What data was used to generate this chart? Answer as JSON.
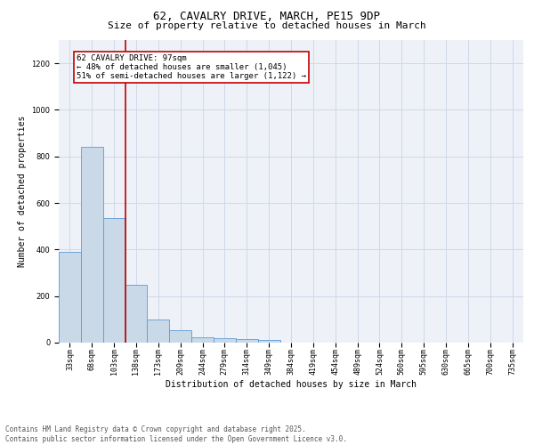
{
  "title_line1": "62, CAVALRY DRIVE, MARCH, PE15 9DP",
  "title_line2": "Size of property relative to detached houses in March",
  "xlabel": "Distribution of detached houses by size in March",
  "ylabel": "Number of detached properties",
  "categories": [
    "33sqm",
    "68sqm",
    "103sqm",
    "138sqm",
    "173sqm",
    "209sqm",
    "244sqm",
    "279sqm",
    "314sqm",
    "349sqm",
    "384sqm",
    "419sqm",
    "454sqm",
    "489sqm",
    "524sqm",
    "560sqm",
    "595sqm",
    "630sqm",
    "665sqm",
    "700sqm",
    "735sqm"
  ],
  "values": [
    390,
    840,
    535,
    248,
    100,
    52,
    22,
    20,
    14,
    10,
    0,
    0,
    0,
    0,
    0,
    0,
    0,
    0,
    0,
    0,
    0
  ],
  "bar_color": "#c9d9e8",
  "bar_edge_color": "#5b9bd5",
  "vline_x": 2.5,
  "vline_color": "#c00000",
  "annotation_box_text": "62 CAVALRY DRIVE: 97sqm\n← 48% of detached houses are smaller (1,045)\n51% of semi-detached houses are larger (1,122) →",
  "ylim": [
    0,
    1300
  ],
  "yticks": [
    0,
    200,
    400,
    600,
    800,
    1000,
    1200
  ],
  "grid_color": "#d0d8e8",
  "bg_color": "#eef2f8",
  "footer_line1": "Contains HM Land Registry data © Crown copyright and database right 2025.",
  "footer_line2": "Contains public sector information licensed under the Open Government Licence v3.0.",
  "title_fontsize": 9,
  "subtitle_fontsize": 8,
  "axis_label_fontsize": 7,
  "tick_fontsize": 6,
  "annotation_fontsize": 6.5,
  "footer_fontsize": 5.5
}
